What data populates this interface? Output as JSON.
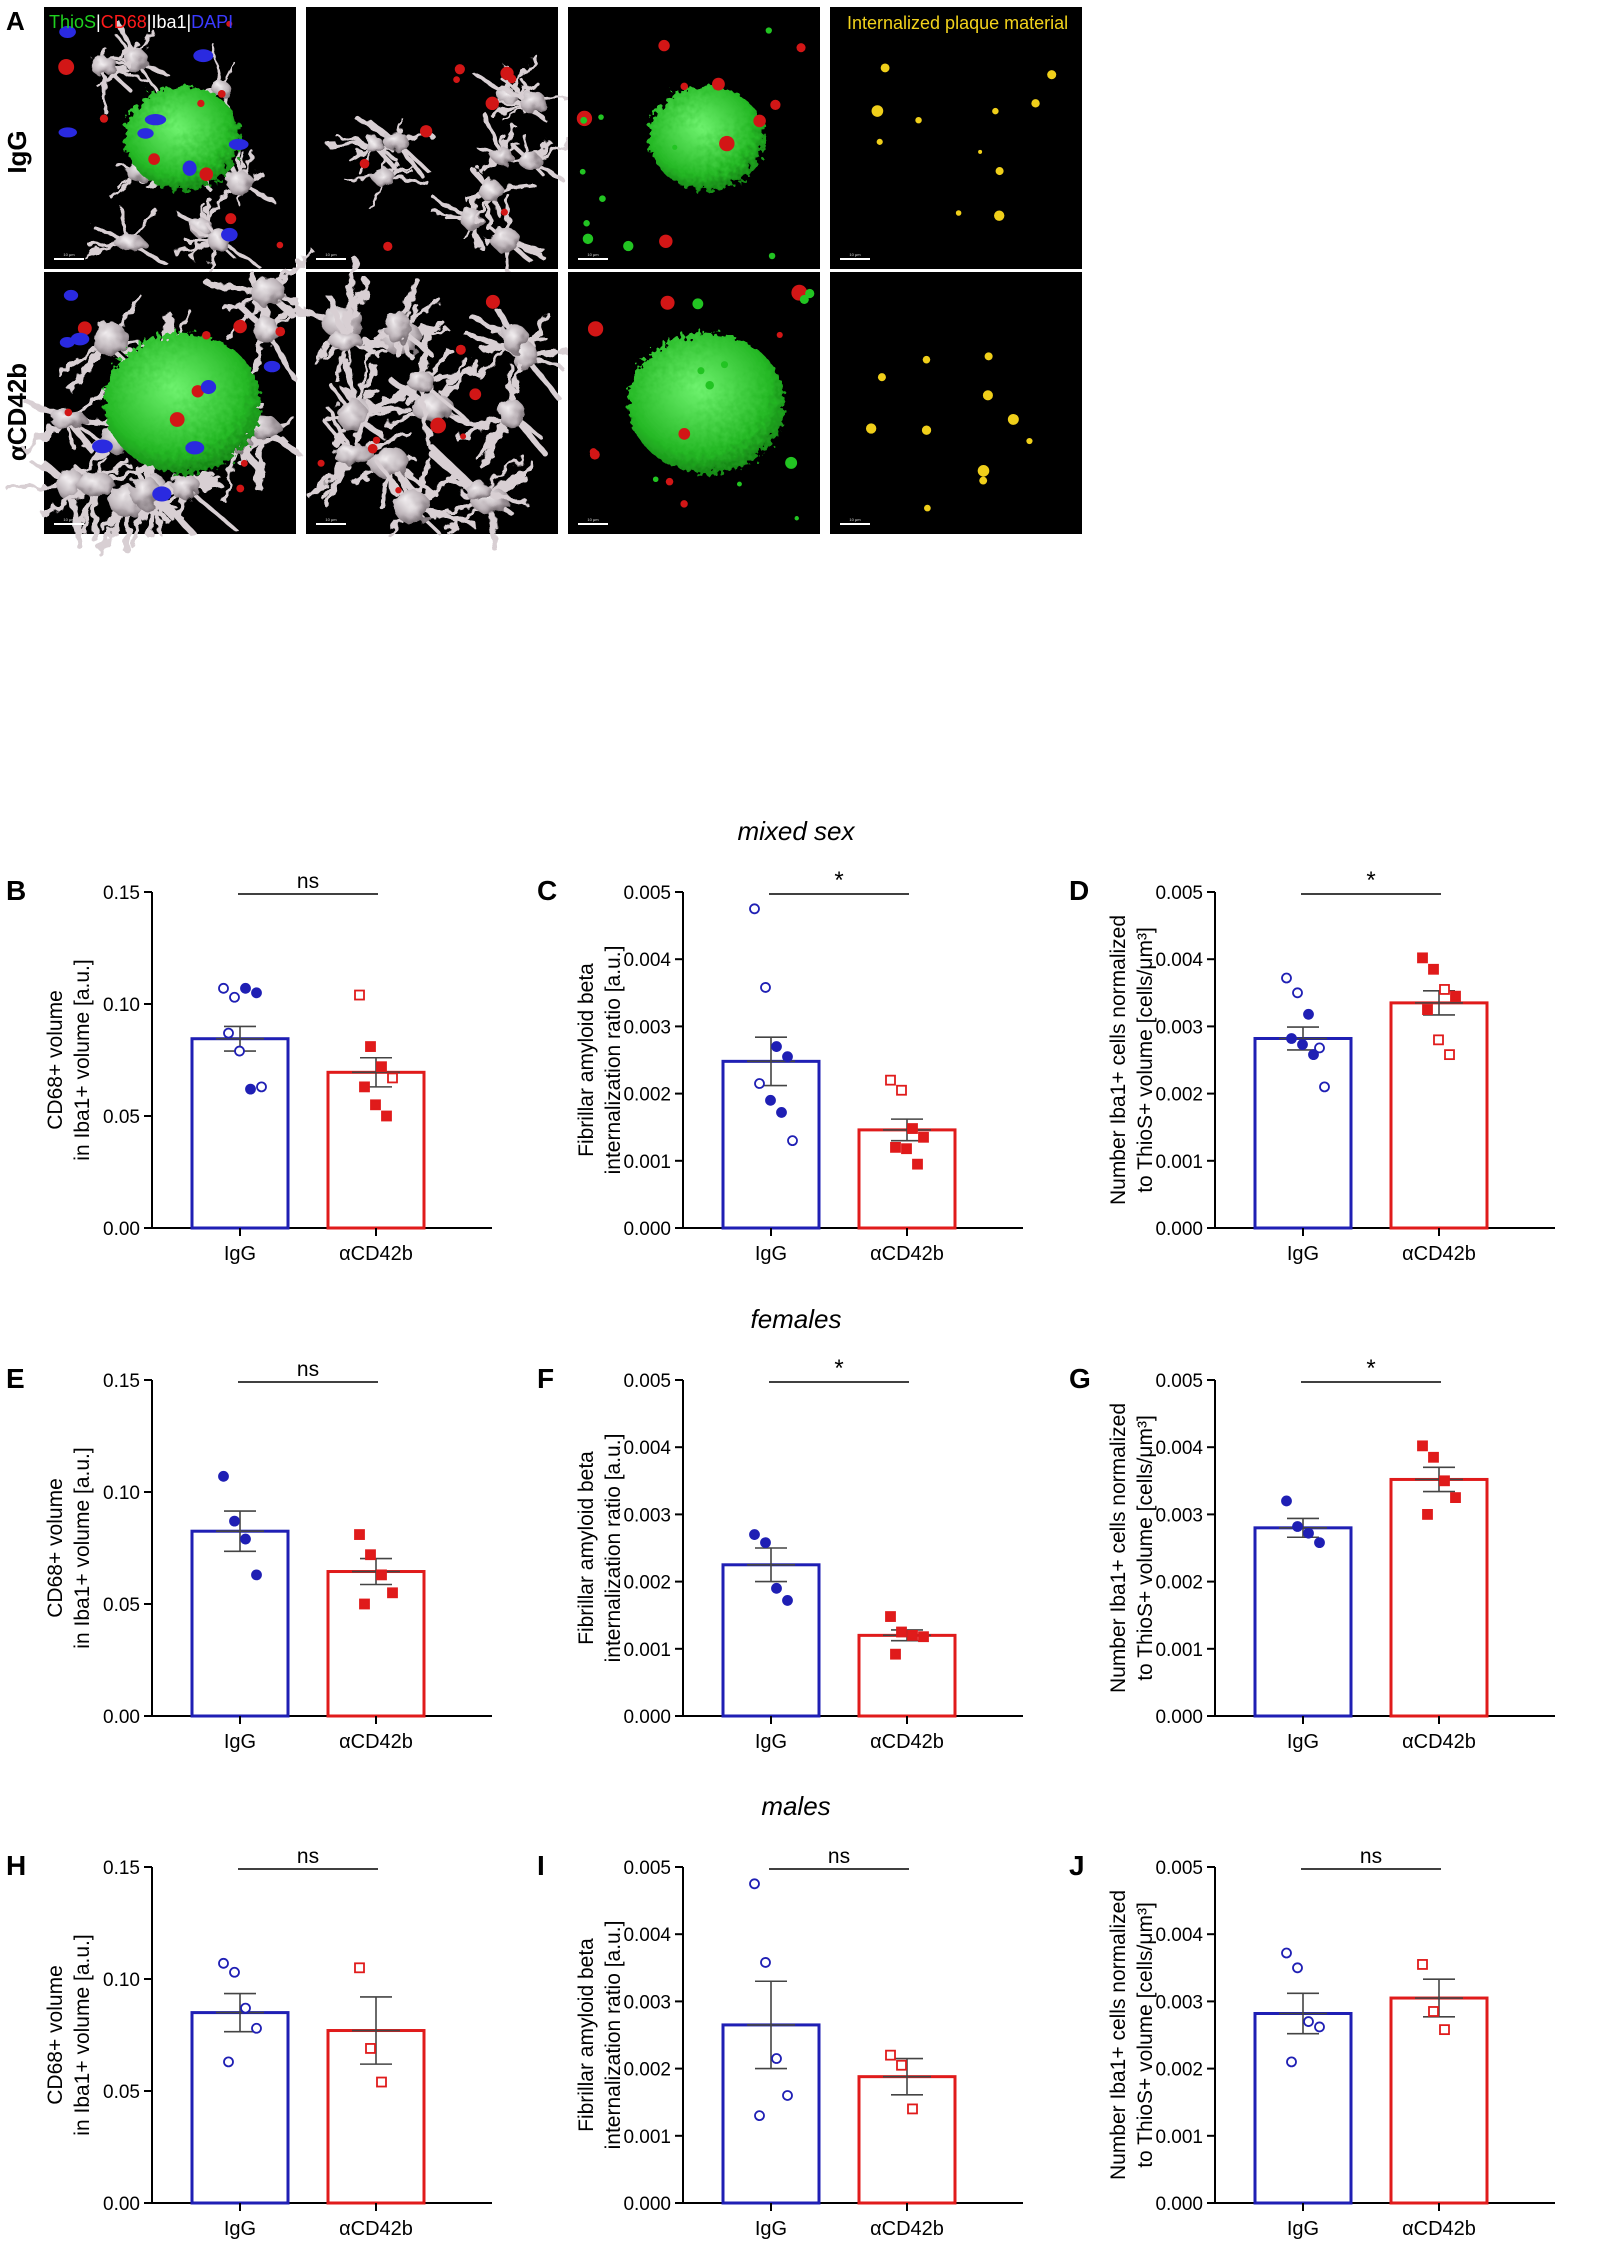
{
  "figure": {
    "panel_a": {
      "letter": "A",
      "row_labels": [
        "IgG",
        "αCD42b"
      ],
      "legend_items": [
        {
          "text": "ThioS",
          "color": "#1fd11f"
        },
        {
          "text": "|",
          "color": "#ffffff"
        },
        {
          "text": "CD68",
          "color": "#ff1a1a"
        },
        {
          "text": "|",
          "color": "#ffffff"
        },
        {
          "text": "Iba1",
          "color": "#ffffff"
        },
        {
          "text": "|",
          "color": "#ffffff"
        },
        {
          "text": "DAPI",
          "color": "#3a3aff"
        }
      ],
      "col4_label": "Internalized plaque material",
      "col4_label_color": "#f2d21b",
      "scale_text": "10 μm"
    },
    "section_titles": [
      "mixed sex",
      "females",
      "males"
    ],
    "colors": {
      "igg": "#1f1fb4",
      "cd42b": "#e01b1b",
      "error": "#444444"
    }
  },
  "chart_data": [
    {
      "panel": "B",
      "type": "bar",
      "ylabel": [
        "CD68+ volume",
        "in Iba1+ volume [a.u.]"
      ],
      "ylim": [
        0,
        0.15
      ],
      "yticks": [
        "0.00",
        "0.05",
        "0.10",
        "0.15"
      ],
      "categories": [
        "IgG",
        "αCD42b"
      ],
      "means": [
        0.0845,
        0.0695
      ],
      "sem": [
        0.0055,
        0.0065
      ],
      "sig": "ns",
      "points": [
        [
          {
            "v": 0.107,
            "f": 0
          },
          {
            "v": 0.103,
            "f": 0
          },
          {
            "v": 0.107,
            "f": 1
          },
          {
            "v": 0.105,
            "f": 1
          },
          {
            "v": 0.087,
            "f": 0
          },
          {
            "v": 0.079,
            "f": 0
          },
          {
            "v": 0.062,
            "f": 1
          },
          {
            "v": 0.063,
            "f": 0
          }
        ],
        [
          {
            "v": 0.104,
            "f": 0
          },
          {
            "v": 0.081,
            "f": 1
          },
          {
            "v": 0.072,
            "f": 1
          },
          {
            "v": 0.067,
            "f": 0
          },
          {
            "v": 0.063,
            "f": 1
          },
          {
            "v": 0.055,
            "f": 1
          },
          {
            "v": 0.05,
            "f": 1
          }
        ]
      ]
    },
    {
      "panel": "C",
      "type": "bar",
      "ylabel": [
        "Fibrillar amyloid beta",
        "internalization ratio [a.u.]"
      ],
      "ylim": [
        0,
        0.005
      ],
      "yticks": [
        "0.000",
        "0.001",
        "0.002",
        "0.003",
        "0.004",
        "0.005"
      ],
      "categories": [
        "IgG",
        "αCD42b"
      ],
      "means": [
        0.00248,
        0.00146
      ],
      "sem": [
        0.00036,
        0.00016
      ],
      "sig": "*",
      "points": [
        [
          {
            "v": 0.00475,
            "f": 0
          },
          {
            "v": 0.00358,
            "f": 0
          },
          {
            "v": 0.0027,
            "f": 1
          },
          {
            "v": 0.00255,
            "f": 1
          },
          {
            "v": 0.00215,
            "f": 0
          },
          {
            "v": 0.0019,
            "f": 1
          },
          {
            "v": 0.00172,
            "f": 1
          },
          {
            "v": 0.0013,
            "f": 0
          }
        ],
        [
          {
            "v": 0.0022,
            "f": 0
          },
          {
            "v": 0.00205,
            "f": 0
          },
          {
            "v": 0.00148,
            "f": 1
          },
          {
            "v": 0.00135,
            "f": 1
          },
          {
            "v": 0.0012,
            "f": 1
          },
          {
            "v": 0.00118,
            "f": 1
          },
          {
            "v": 0.00095,
            "f": 1
          }
        ]
      ]
    },
    {
      "panel": "D",
      "type": "bar",
      "ylabel": [
        "Number Iba1+ cells normalized",
        "to ThioS+ volume [cells/μm³]"
      ],
      "ylim": [
        0,
        0.005
      ],
      "yticks": [
        "0.000",
        "0.001",
        "0.002",
        "0.003",
        "0.004",
        "0.005"
      ],
      "categories": [
        "IgG",
        "αCD42b"
      ],
      "means": [
        0.00282,
        0.00335
      ],
      "sem": [
        0.00017,
        0.00018
      ],
      "sig": "*",
      "points": [
        [
          {
            "v": 0.00372,
            "f": 0
          },
          {
            "v": 0.0035,
            "f": 0
          },
          {
            "v": 0.00318,
            "f": 1
          },
          {
            "v": 0.00268,
            "f": 0
          },
          {
            "v": 0.00282,
            "f": 1
          },
          {
            "v": 0.00273,
            "f": 1
          },
          {
            "v": 0.00258,
            "f": 1
          },
          {
            "v": 0.0021,
            "f": 0
          }
        ],
        [
          {
            "v": 0.00402,
            "f": 1
          },
          {
            "v": 0.00385,
            "f": 1
          },
          {
            "v": 0.00355,
            "f": 0
          },
          {
            "v": 0.00345,
            "f": 1
          },
          {
            "v": 0.00325,
            "f": 1
          },
          {
            "v": 0.0028,
            "f": 0
          },
          {
            "v": 0.00258,
            "f": 0
          }
        ]
      ]
    },
    {
      "panel": "E",
      "type": "bar",
      "ylabel": [
        "CD68+ volume",
        "in Iba1+ volume [a.u.]"
      ],
      "ylim": [
        0,
        0.15
      ],
      "yticks": [
        "0.00",
        "0.05",
        "0.10",
        "0.15"
      ],
      "categories": [
        "IgG",
        "αCD42b"
      ],
      "means": [
        0.0825,
        0.0645
      ],
      "sem": [
        0.009,
        0.0058
      ],
      "sig": "ns",
      "points": [
        [
          {
            "v": 0.107,
            "f": 1
          },
          {
            "v": 0.087,
            "f": 1
          },
          {
            "v": 0.079,
            "f": 1
          },
          {
            "v": 0.063,
            "f": 1
          }
        ],
        [
          {
            "v": 0.081,
            "f": 1
          },
          {
            "v": 0.072,
            "f": 1
          },
          {
            "v": 0.063,
            "f": 1
          },
          {
            "v": 0.055,
            "f": 1
          },
          {
            "v": 0.05,
            "f": 1
          }
        ]
      ]
    },
    {
      "panel": "F",
      "type": "bar",
      "ylabel": [
        "Fibrillar amyloid beta",
        "internalization ratio [a.u.]"
      ],
      "ylim": [
        0,
        0.005
      ],
      "yticks": [
        "0.000",
        "0.001",
        "0.002",
        "0.003",
        "0.004",
        "0.005"
      ],
      "categories": [
        "IgG",
        "αCD42b"
      ],
      "means": [
        0.00225,
        0.0012
      ],
      "sem": [
        0.00025,
        8e-05
      ],
      "sig": "*",
      "points": [
        [
          {
            "v": 0.0027,
            "f": 1
          },
          {
            "v": 0.00258,
            "f": 1
          },
          {
            "v": 0.0019,
            "f": 1
          },
          {
            "v": 0.00172,
            "f": 1
          }
        ],
        [
          {
            "v": 0.00148,
            "f": 1
          },
          {
            "v": 0.00125,
            "f": 1
          },
          {
            "v": 0.0012,
            "f": 1
          },
          {
            "v": 0.00118,
            "f": 1
          },
          {
            "v": 0.00092,
            "f": 1
          }
        ]
      ]
    },
    {
      "panel": "G",
      "type": "bar",
      "ylabel": [
        "Number Iba1+ cells normalized",
        "to ThioS+ volume [cells/μm³]"
      ],
      "ylim": [
        0,
        0.005
      ],
      "yticks": [
        "0.000",
        "0.001",
        "0.002",
        "0.003",
        "0.004",
        "0.005"
      ],
      "categories": [
        "IgG",
        "αCD42b"
      ],
      "means": [
        0.0028,
        0.00352
      ],
      "sem": [
        0.00014,
        0.00018
      ],
      "sig": "*",
      "points": [
        [
          {
            "v": 0.0032,
            "f": 1
          },
          {
            "v": 0.00282,
            "f": 1
          },
          {
            "v": 0.00272,
            "f": 1
          },
          {
            "v": 0.00258,
            "f": 1
          }
        ],
        [
          {
            "v": 0.00402,
            "f": 1
          },
          {
            "v": 0.00385,
            "f": 1
          },
          {
            "v": 0.0035,
            "f": 1
          },
          {
            "v": 0.00325,
            "f": 1
          },
          {
            "v": 0.003,
            "f": 1
          }
        ]
      ]
    },
    {
      "panel": "H",
      "type": "bar",
      "ylabel": [
        "CD68+ volume",
        "in Iba1+ volume [a.u.]"
      ],
      "ylim": [
        0,
        0.15
      ],
      "yticks": [
        "0.00",
        "0.05",
        "0.10",
        "0.15"
      ],
      "categories": [
        "IgG",
        "αCD42b"
      ],
      "means": [
        0.085,
        0.077
      ],
      "sem": [
        0.0085,
        0.015
      ],
      "sig": "ns",
      "points": [
        [
          {
            "v": 0.107,
            "f": 0
          },
          {
            "v": 0.103,
            "f": 0
          },
          {
            "v": 0.087,
            "f": 0
          },
          {
            "v": 0.078,
            "f": 0
          },
          {
            "v": 0.063,
            "f": 0
          }
        ],
        [
          {
            "v": 0.105,
            "f": 0
          },
          {
            "v": 0.069,
            "f": 0
          },
          {
            "v": 0.054,
            "f": 0
          }
        ]
      ]
    },
    {
      "panel": "I",
      "type": "bar",
      "ylabel": [
        "Fibrillar amyloid beta",
        "internalization ratio [a.u.]"
      ],
      "ylim": [
        0,
        0.005
      ],
      "yticks": [
        "0.000",
        "0.001",
        "0.002",
        "0.003",
        "0.004",
        "0.005"
      ],
      "categories": [
        "IgG",
        "αCD42b"
      ],
      "means": [
        0.00265,
        0.00188
      ],
      "sem": [
        0.00065,
        0.00027
      ],
      "sig": "ns",
      "points": [
        [
          {
            "v": 0.00475,
            "f": 0
          },
          {
            "v": 0.00358,
            "f": 0
          },
          {
            "v": 0.00215,
            "f": 0
          },
          {
            "v": 0.0016,
            "f": 0
          },
          {
            "v": 0.0013,
            "f": 0
          }
        ],
        [
          {
            "v": 0.0022,
            "f": 0
          },
          {
            "v": 0.00205,
            "f": 0
          },
          {
            "v": 0.0014,
            "f": 0
          }
        ]
      ]
    },
    {
      "panel": "J",
      "type": "bar",
      "ylabel": [
        "Number Iba1+ cells normalized",
        "to ThioS+ volume [cells/μm³]"
      ],
      "ylim": [
        0,
        0.005
      ],
      "yticks": [
        "0.000",
        "0.001",
        "0.002",
        "0.003",
        "0.004",
        "0.005"
      ],
      "categories": [
        "IgG",
        "αCD42b"
      ],
      "means": [
        0.00282,
        0.00305
      ],
      "sem": [
        0.0003,
        0.00028
      ],
      "sig": "ns",
      "points": [
        [
          {
            "v": 0.00372,
            "f": 0
          },
          {
            "v": 0.0035,
            "f": 0
          },
          {
            "v": 0.0027,
            "f": 0
          },
          {
            "v": 0.00262,
            "f": 0
          },
          {
            "v": 0.0021,
            "f": 0
          }
        ],
        [
          {
            "v": 0.00355,
            "f": 0
          },
          {
            "v": 0.00285,
            "f": 0
          },
          {
            "v": 0.00258,
            "f": 0
          }
        ]
      ]
    }
  ]
}
